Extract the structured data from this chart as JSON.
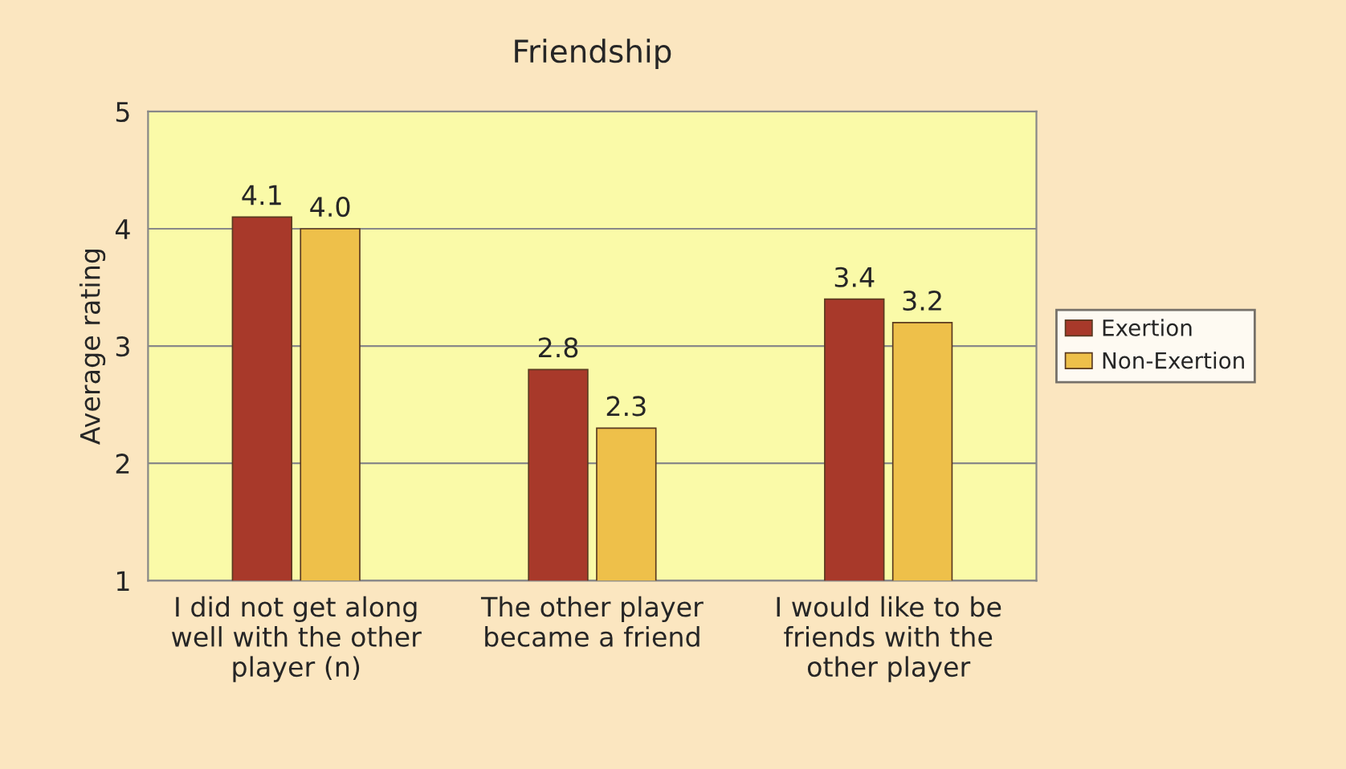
{
  "chart_data": {
    "type": "bar",
    "title": "Friendship",
    "ylabel": "Average rating",
    "categories": [
      "I did not get along\nwell with the other\nplayer (n)",
      "The other player\nbecame a friend",
      "I would like to be\nfriends with the\nother player"
    ],
    "series": [
      {
        "name": "Exertion",
        "color": "#a8392a",
        "values": [
          4.1,
          2.8,
          3.4
        ],
        "value_labels": [
          "4.1",
          "2.8",
          "3.4"
        ]
      },
      {
        "name": "Non-Exertion",
        "color": "#eec04a",
        "values": [
          4.0,
          2.3,
          3.2
        ],
        "value_labels": [
          "4.0",
          "2.3",
          "3.2"
        ]
      }
    ],
    "ylim": [
      1,
      5
    ],
    "yticks": [
      1,
      2,
      3,
      4,
      5
    ],
    "grid": "y",
    "legend": "right"
  }
}
